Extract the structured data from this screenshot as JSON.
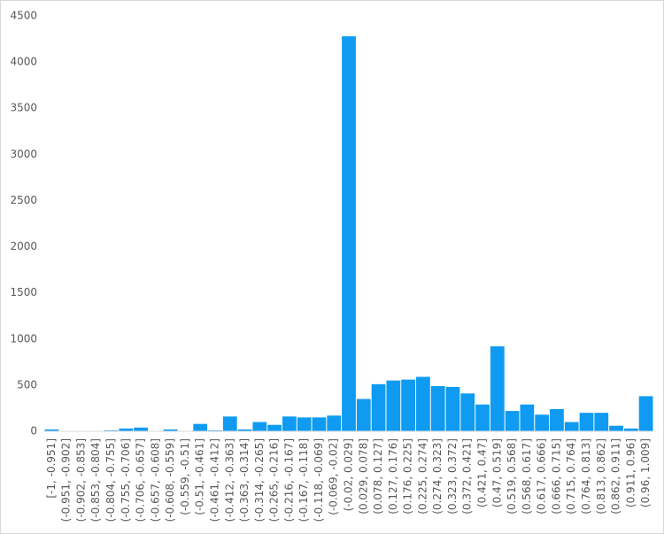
{
  "chart_data": {
    "type": "bar",
    "categories": [
      "[-1, -0.951]",
      "(-0.951, -0.902]",
      "(-0.902, -0.853]",
      "(-0.853, -0.804]",
      "(-0.804, -0.755]",
      "(-0.755, -0.706]",
      "(-0.706, -0.657]",
      "(-0.657, -0.608]",
      "(-0.608, -0.559]",
      "(-0.559, -0.51]",
      "(-0.51, -0.461]",
      "(-0.461, -0.412]",
      "(-0.412, -0.363]",
      "(-0.363, -0.314]",
      "(-0.314, -0.265]",
      "(-0.265, -0.216]",
      "(-0.216, -0.167]",
      "(-0.167, -0.118]",
      "(-0.118, -0.069]",
      "(-0.069, -0.02]",
      "(-0.02, 0.029]",
      "(0.029, 0.078]",
      "(0.078, 0.127]",
      "(0.127, 0.176]",
      "(0.176, 0.225]",
      "(0.225, 0.274]",
      "(0.274, 0.323]",
      "(0.323, 0.372]",
      "(0.372, 0.421]",
      "(0.421, 0.47]",
      "(0.47, 0.519]",
      "(0.519, 0.568]",
      "(0.568, 0.617]",
      "(0.617, 0.666]",
      "(0.666, 0.715]",
      "(0.715, 0.764]",
      "(0.764, 0.813]",
      "(0.813, 0.862]",
      "(0.862, 0.911]",
      "(0.911, 0.96]",
      "(0.96, 1.009]"
    ],
    "values": [
      20,
      0,
      0,
      0,
      10,
      30,
      40,
      0,
      20,
      0,
      80,
      10,
      160,
      20,
      100,
      70,
      160,
      150,
      150,
      170,
      4280,
      350,
      510,
      550,
      560,
      590,
      490,
      480,
      410,
      290,
      920,
      220,
      290,
      180,
      240,
      100,
      200,
      200,
      60,
      30,
      380
    ],
    "color": "#0f9bf2",
    "ylim": [
      0,
      4500
    ],
    "yticks": [
      0,
      500,
      1000,
      1500,
      2000,
      2500,
      3000,
      3500,
      4000,
      4500
    ],
    "grid": false
  }
}
